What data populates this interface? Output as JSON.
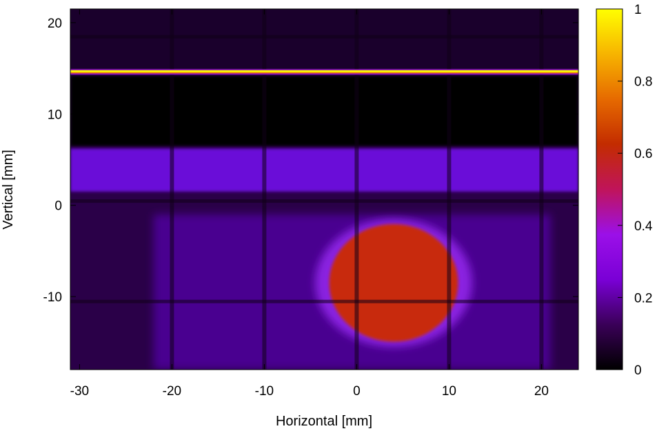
{
  "chart_data": {
    "type": "heatmap",
    "title": "",
    "xlabel": "Horizontal [mm]",
    "ylabel": "Vertical [mm]",
    "xlim": [
      -31,
      24
    ],
    "ylim": [
      -18,
      21.5
    ],
    "x_ticks": [
      -30,
      -20,
      -10,
      0,
      10,
      20
    ],
    "y_ticks": [
      -10,
      0,
      10,
      20
    ],
    "colorbar": {
      "range": [
        0,
        1
      ],
      "ticks": [
        0,
        0.2,
        0.4,
        0.6,
        0.8,
        1
      ],
      "tick_labels": [
        "0",
        "0.2",
        "0.4",
        "0.6",
        "0.8",
        "1"
      ],
      "colormap": [
        "#000000",
        "#3a0058",
        "#7a00d6",
        "#9b10e8",
        "#c0145a",
        "#c32c00",
        "#e66a00",
        "#f7b400",
        "#ffff00"
      ]
    },
    "features": {
      "background_level": 0.15,
      "bright_line": {
        "y": 14.6,
        "value": 1.0
      },
      "dark_band": {
        "y_range": [
          6.5,
          14.2
        ],
        "value": 0.0
      },
      "upper_region": {
        "y_range": [
          15,
          21.5
        ],
        "value": 0.05
      },
      "light_band": {
        "y_range": [
          1.5,
          6.2
        ],
        "value": 0.22
      },
      "beam_spot": {
        "center": [
          4,
          -8.5
        ],
        "radius_x": 8.5,
        "radius_y": 7,
        "value": 0.5
      },
      "grid_lines_x": [
        -20,
        -10,
        0,
        10,
        20
      ],
      "grid_lines_y": [
        0.5,
        -10.5,
        18.5
      ]
    }
  }
}
